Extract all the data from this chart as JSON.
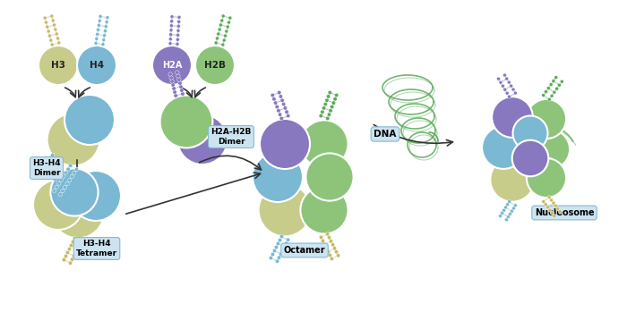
{
  "bg_color": "#ffffff",
  "h3_color": "#c8cc8a",
  "h4_color": "#7ab8d4",
  "h2a_color": "#8878c0",
  "h2b_color": "#8dc47a",
  "dna_yellow": "#c8b86a",
  "dna_blue": "#7ab8d4",
  "dna_purple": "#8878c0",
  "dna_green": "#5aaa5a",
  "label_box_color": "#cce4f0",
  "labels": {
    "H3": "H3",
    "H4": "H4",
    "H2A": "H2A",
    "H2B": "H2B",
    "dimer1": "H3-H4\nDimer",
    "dimer2": "H2A-H2B\nDimer",
    "tetramer": "H3-H4\nTetramer",
    "octamer": "Octamer",
    "nucleosome": "Nucleosome",
    "dna": "DNA"
  }
}
